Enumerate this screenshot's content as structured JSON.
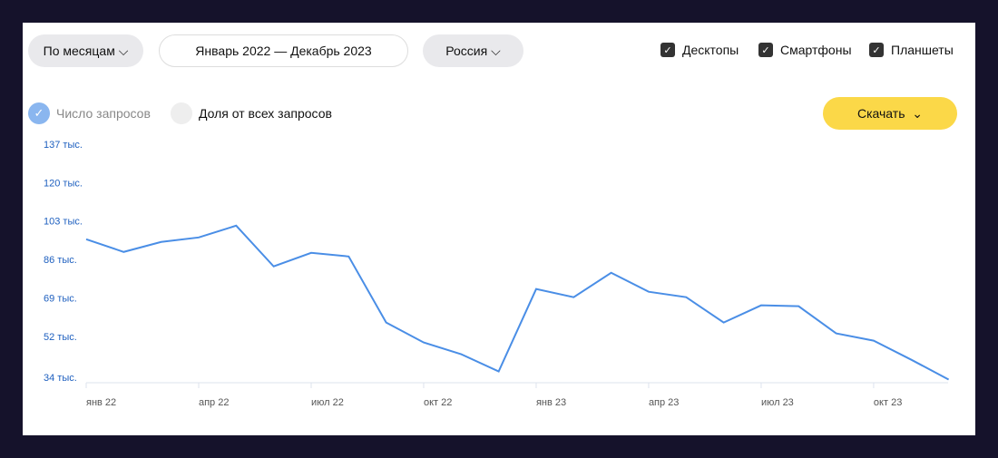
{
  "controls": {
    "period": "По месяцам",
    "range": "Январь 2022 — Декабрь 2023",
    "region": "Россия",
    "devices": [
      "Десктопы",
      "Смартфоны",
      "Планшеты"
    ],
    "modes": [
      "Число запросов",
      "Доля от всех запросов"
    ],
    "download": "Скачать"
  },
  "chart_data": {
    "type": "line",
    "categories": [
      "янв 22",
      null,
      null,
      "апр 22",
      null,
      null,
      "июл 22",
      null,
      null,
      "окт 22",
      null,
      null,
      "янв 23",
      null,
      null,
      "апр 23",
      null,
      null,
      "июл 23",
      null,
      null,
      "окт 23",
      null,
      null
    ],
    "values": [
      95400,
      89800,
      94200,
      96200,
      101400,
      83400,
      89400,
      87800,
      58600,
      49800,
      44600,
      37000,
      73400,
      69800,
      80600,
      72200,
      69800,
      58600,
      66200,
      65800,
      53800,
      50600,
      42200,
      33400
    ],
    "color": "#4a8ee6",
    "ylim": [
      32000,
      137000
    ],
    "yticks": [
      {
        "value": 137000,
        "label": "137 тыс."
      },
      {
        "value": 120000,
        "label": "120 тыс."
      },
      {
        "value": 103000,
        "label": "103 тыс."
      },
      {
        "value": 86000,
        "label": "86 тыс."
      },
      {
        "value": 69000,
        "label": "69 тыс."
      },
      {
        "value": 52000,
        "label": "52 тыс."
      },
      {
        "value": 34000,
        "label": "34 тыс."
      }
    ]
  }
}
